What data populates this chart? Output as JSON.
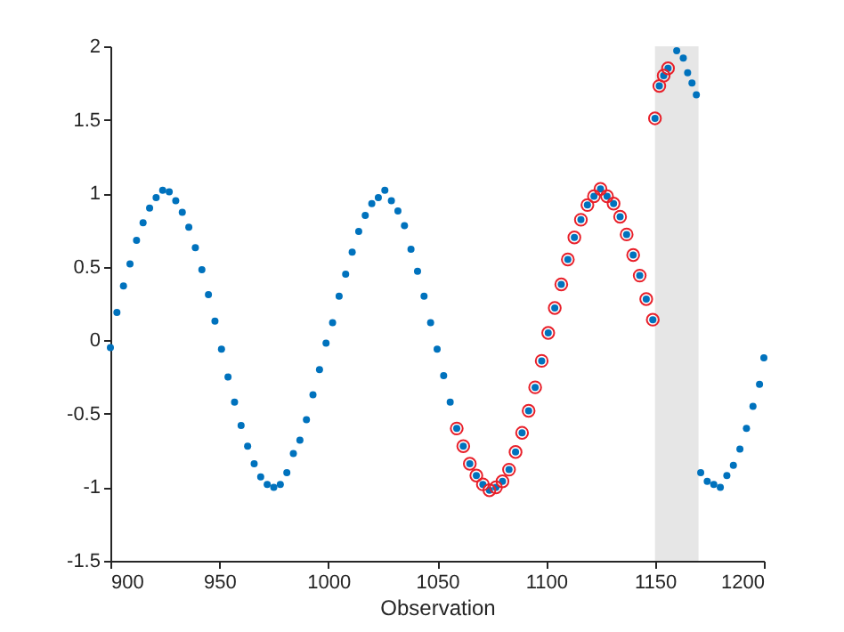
{
  "chart_data": {
    "type": "scatter",
    "xlabel": "Observation",
    "marker": "circle",
    "xlim": [
      900,
      1200
    ],
    "xticks": [
      900,
      950,
      1000,
      1050,
      1100,
      1150,
      1200
    ],
    "ylim": [
      -1.5,
      2
    ],
    "yticks": [
      -1.5,
      -1,
      -0.5,
      0,
      0.5,
      1,
      1.5,
      2
    ],
    "bands": [
      {
        "axis": "x",
        "from": 1150,
        "to": 1170,
        "color": "#e6e6e6"
      }
    ],
    "series": [
      {
        "color": "#0072bd",
        "x": [
          900,
          903,
          906,
          909,
          912,
          915,
          918,
          921,
          924,
          927,
          930,
          933,
          936,
          939,
          942,
          945,
          948,
          951,
          954,
          957,
          960,
          963,
          966,
          969,
          972,
          975,
          978,
          981,
          984,
          987,
          990,
          993,
          996,
          999,
          1002,
          1005,
          1008,
          1011,
          1014,
          1017,
          1020,
          1023,
          1026,
          1029,
          1032,
          1035,
          1038,
          1041,
          1044,
          1047,
          1050,
          1053,
          1056,
          1059,
          1062,
          1065,
          1068,
          1071,
          1074,
          1077,
          1080,
          1083,
          1086,
          1089,
          1092,
          1095,
          1098,
          1101,
          1104,
          1107,
          1110,
          1113,
          1116,
          1119,
          1122,
          1125,
          1128,
          1131,
          1134,
          1137,
          1140,
          1143,
          1146,
          1149,
          1150,
          1152,
          1154,
          1156,
          1160,
          1163,
          1165,
          1167,
          1169,
          1171,
          1174,
          1177,
          1180,
          1183,
          1186,
          1189,
          1192,
          1195,
          1198,
          1200
        ],
        "values": [
          -0.05,
          0.19,
          0.37,
          0.52,
          0.68,
          0.8,
          0.9,
          0.97,
          1.02,
          1.01,
          0.95,
          0.87,
          0.77,
          0.63,
          0.48,
          0.31,
          0.13,
          -0.06,
          -0.25,
          -0.42,
          -0.58,
          -0.72,
          -0.84,
          -0.93,
          -0.98,
          -1,
          -0.98,
          -0.9,
          -0.77,
          -0.68,
          -0.54,
          -0.37,
          -0.2,
          -0.02,
          0.12,
          0.3,
          0.45,
          0.6,
          0.74,
          0.85,
          0.93,
          0.97,
          1.02,
          0.95,
          0.88,
          0.78,
          0.62,
          0.47,
          0.3,
          0.12,
          -0.06,
          -0.24,
          -0.42,
          -0.6,
          -0.72,
          -0.84,
          -0.92,
          -0.98,
          -1.02,
          -1,
          -0.96,
          -0.88,
          -0.76,
          -0.63,
          -0.48,
          -0.32,
          -0.14,
          0.05,
          0.22,
          0.38,
          0.55,
          0.7,
          0.82,
          0.92,
          0.98,
          1.03,
          0.98,
          0.93,
          0.84,
          0.72,
          0.58,
          0.44,
          0.28,
          0.14,
          1.51,
          1.73,
          1.8,
          1.85,
          1.97,
          1.92,
          1.82,
          1.75,
          1.67,
          -0.9,
          -0.96,
          -0.98,
          -1,
          -0.92,
          -0.85,
          -0.74,
          -0.6,
          -0.45,
          -0.3,
          -0.12
        ]
      },
      {
        "color": "#e8202a",
        "x": [
          1059,
          1062,
          1065,
          1068,
          1071,
          1074,
          1077,
          1080,
          1083,
          1086,
          1089,
          1092,
          1095,
          1098,
          1101,
          1104,
          1107,
          1110,
          1113,
          1116,
          1119,
          1122,
          1125,
          1128,
          1131,
          1134,
          1137,
          1140,
          1143,
          1146,
          1149,
          1150,
          1152,
          1154,
          1156
        ],
        "values": [
          -0.6,
          -0.72,
          -0.84,
          -0.92,
          -0.98,
          -1.02,
          -1,
          -0.96,
          -0.88,
          -0.76,
          -0.63,
          -0.48,
          -0.32,
          -0.14,
          0.05,
          0.22,
          0.38,
          0.55,
          0.7,
          0.82,
          0.92,
          0.98,
          1.03,
          0.98,
          0.93,
          0.84,
          0.72,
          0.58,
          0.44,
          0.28,
          0.14,
          1.51,
          1.73,
          1.8,
          1.85
        ]
      }
    ]
  }
}
